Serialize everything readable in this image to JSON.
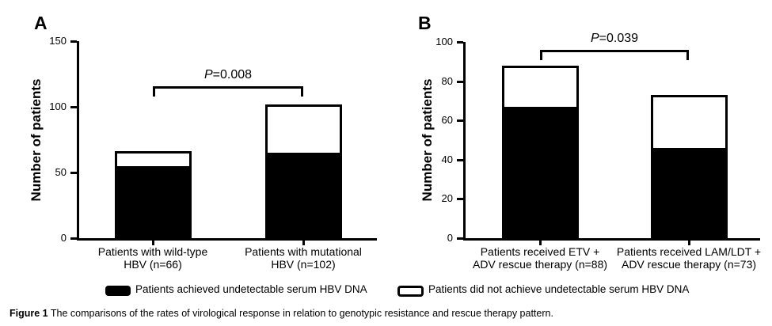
{
  "figure": {
    "caption_prefix": "Figure 1",
    "caption_text": "The comparisons of the rates of virological response in relation to genotypic resistance and rescue therapy pattern."
  },
  "legend": {
    "achieved_label": "Patients achieved undetectable serum HBV DNA",
    "not_achieved_label": "Patients did not achieve undetectable serum HBV DNA",
    "achieved_swatch_color": "#000000",
    "not_achieved_swatch_color": "#ffffff"
  },
  "chart_data": [
    {
      "type": "bar",
      "panel": "A",
      "stacked": true,
      "ylabel": "Number of patients",
      "xlabel": "",
      "ylim": [
        0,
        150
      ],
      "yticks": [
        0,
        50,
        100,
        150
      ],
      "grid": false,
      "legend_position": "bottom",
      "categories": [
        [
          "Patients with wild-type",
          "HBV (n=66)"
        ],
        [
          "Patients with mutational",
          "HBV (n=102)"
        ]
      ],
      "totals": [
        66,
        102
      ],
      "series": [
        {
          "name": "Patients achieved undetectable serum HBV DNA",
          "color": "#000000",
          "values": [
            55,
            65
          ]
        },
        {
          "name": "Patients did not achieve undetectable serum HBV DNA",
          "color": "#ffffff",
          "values": [
            11,
            37
          ]
        }
      ],
      "significance": {
        "p": "P",
        "rest": "=0.008",
        "label": "P=0.008"
      }
    },
    {
      "type": "bar",
      "panel": "B",
      "stacked": true,
      "ylabel": "Number of patients",
      "xlabel": "",
      "ylim": [
        0,
        100
      ],
      "yticks": [
        0,
        20,
        40,
        60,
        80,
        100
      ],
      "grid": false,
      "legend_position": "bottom",
      "categories": [
        [
          "Patients received ETV +",
          "ADV rescue therapy (n=88)"
        ],
        [
          "Patients received LAM/LDT +",
          "ADV rescue therapy (n=73)"
        ]
      ],
      "totals": [
        88,
        73
      ],
      "series": [
        {
          "name": "Patients achieved undetectable serum HBV DNA",
          "color": "#000000",
          "values": [
            67,
            46
          ]
        },
        {
          "name": "Patients did not achieve undetectable serum HBV DNA",
          "color": "#ffffff",
          "values": [
            21,
            27
          ]
        }
      ],
      "significance": {
        "p": "P",
        "rest": "=0.039",
        "label": "P=0.039"
      }
    }
  ]
}
